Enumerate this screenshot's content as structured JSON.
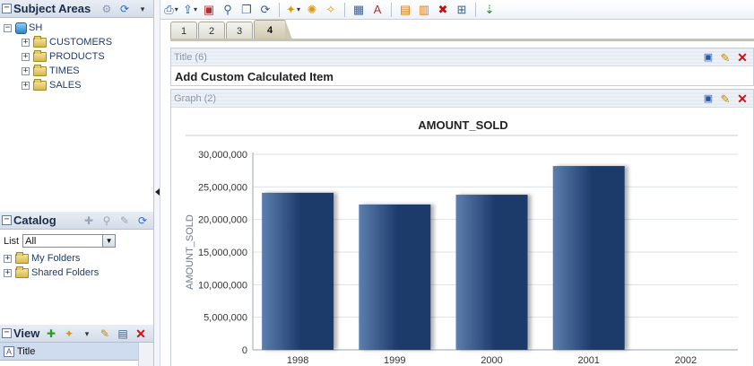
{
  "subject_areas": {
    "title": "Subject Areas",
    "tree": [
      {
        "label": "SH",
        "expanded": true,
        "icon": "database-icon"
      },
      {
        "label": "CUSTOMERS",
        "icon": "folder-icon"
      },
      {
        "label": "PRODUCTS",
        "icon": "folder-icon"
      },
      {
        "label": "TIMES",
        "icon": "folder-icon"
      },
      {
        "label": "SALES",
        "icon": "folder-icon"
      }
    ]
  },
  "catalog": {
    "title": "Catalog",
    "list_label": "List",
    "list_value": "All",
    "folders": [
      {
        "label": "My Folders"
      },
      {
        "label": "Shared Folders"
      }
    ]
  },
  "view": {
    "title": "View",
    "items": [
      {
        "label": "Title"
      }
    ]
  },
  "tabs": [
    {
      "label": "1",
      "active": false
    },
    {
      "label": "2",
      "active": false
    },
    {
      "label": "3",
      "active": false
    },
    {
      "label": "4",
      "active": true
    }
  ],
  "title_view": {
    "header": "Title (6)",
    "text": "Add Custom Calculated Item"
  },
  "graph_view": {
    "header": "Graph (2)"
  },
  "colors": {
    "bar_dark": "#1b3a6b",
    "bar_light": "#5d7fae",
    "accent": "#2a83c6"
  },
  "chart_data": {
    "type": "bar",
    "title": "AMOUNT_SOLD",
    "xlabel": "",
    "ylabel": "AMOUNT_SOLD",
    "categories": [
      "1998",
      "1999",
      "2000",
      "2001",
      "2002"
    ],
    "values": [
      24100000,
      22300000,
      23800000,
      28200000,
      0
    ],
    "ylim": [
      0,
      30000000
    ],
    "yticks": [
      "0",
      "5,000,000",
      "10,000,000",
      "15,000,000",
      "20,000,000",
      "25,000,000",
      "30,000,000"
    ],
    "grid": true
  }
}
